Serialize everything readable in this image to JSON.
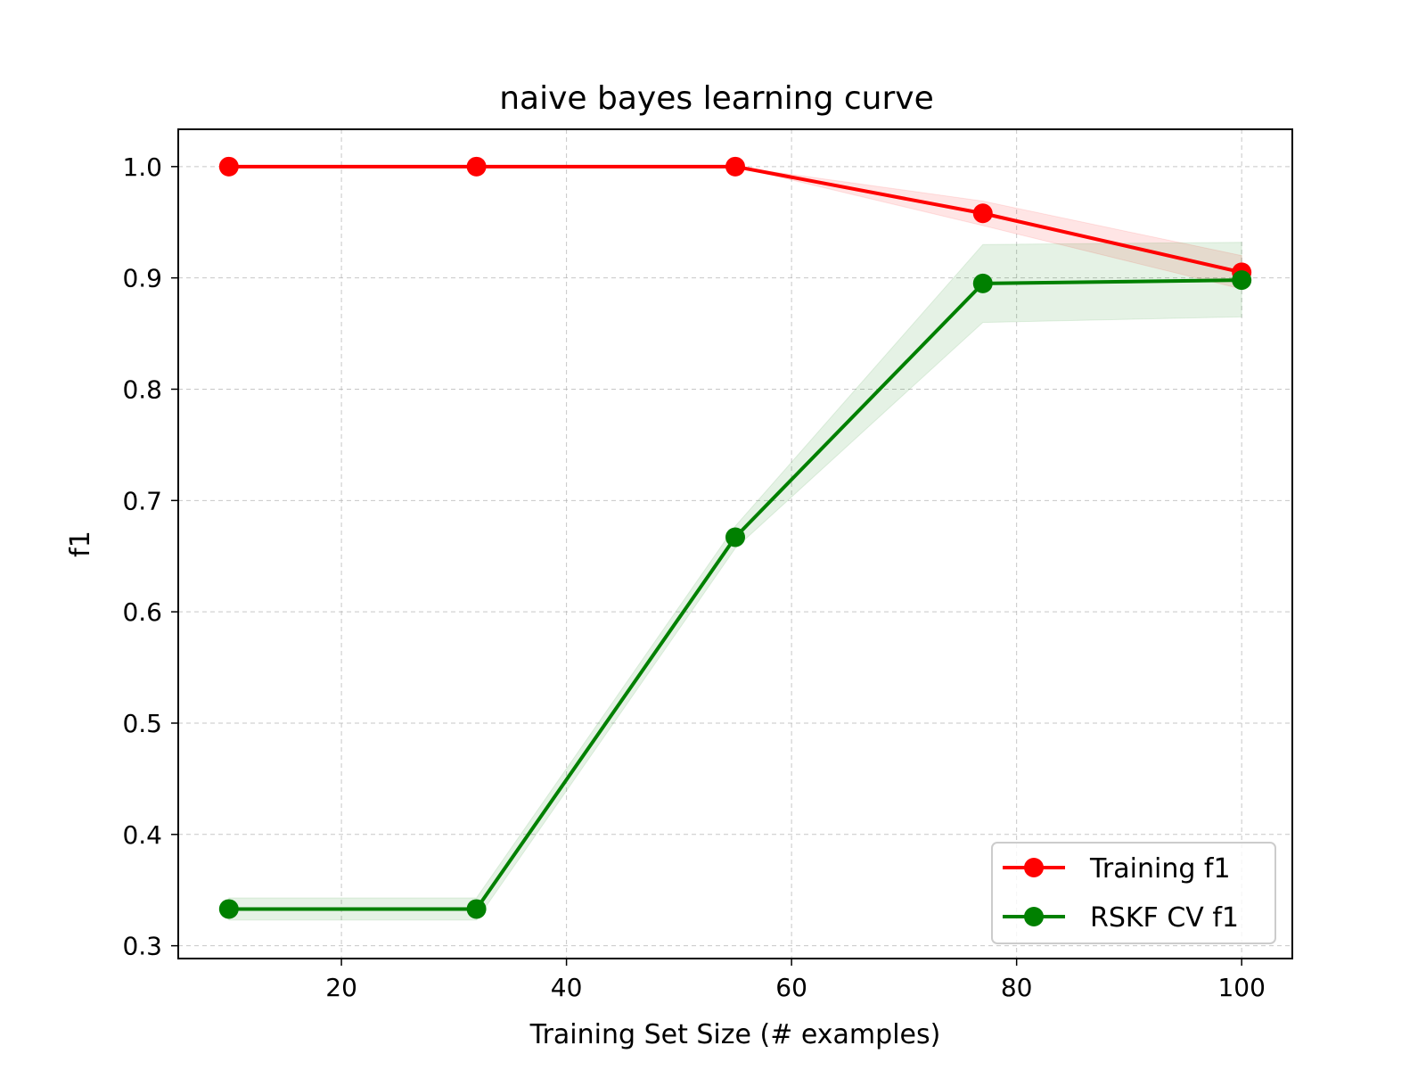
{
  "chart_data": {
    "type": "line",
    "title": "naive bayes learning curve",
    "xlabel": "Training Set Size (# examples)",
    "ylabel": "f1",
    "xlim": [
      5.5,
      104.5
    ],
    "ylim": [
      0.2885,
      1.0335
    ],
    "xticks": [
      20,
      40,
      60,
      80,
      100
    ],
    "yticks": [
      0.3,
      0.4,
      0.5,
      0.6,
      0.7,
      0.8,
      0.9,
      1.0
    ],
    "xtick_labels": [
      "20",
      "40",
      "60",
      "80",
      "100"
    ],
    "ytick_labels": [
      "0.3",
      "0.4",
      "0.5",
      "0.6",
      "0.7",
      "0.8",
      "0.9",
      "1.0"
    ],
    "grid": true,
    "legend_position": "bottom-right",
    "x": [
      10,
      32,
      55,
      77,
      100
    ],
    "series": [
      {
        "name": "Training f1",
        "color": "#ff0000",
        "values": [
          1.0,
          1.0,
          1.0,
          0.958,
          0.905
        ],
        "band_lower": [
          1.0,
          1.0,
          1.0,
          0.947,
          0.89
        ],
        "band_upper": [
          1.0,
          1.0,
          1.0,
          0.969,
          0.92
        ]
      },
      {
        "name": "RSKF CV f1",
        "color": "#008000",
        "values": [
          0.333,
          0.333,
          0.667,
          0.895,
          0.898
        ],
        "band_lower": [
          0.323,
          0.323,
          0.657,
          0.86,
          0.865
        ],
        "band_upper": [
          0.343,
          0.343,
          0.677,
          0.93,
          0.932
        ]
      }
    ]
  }
}
